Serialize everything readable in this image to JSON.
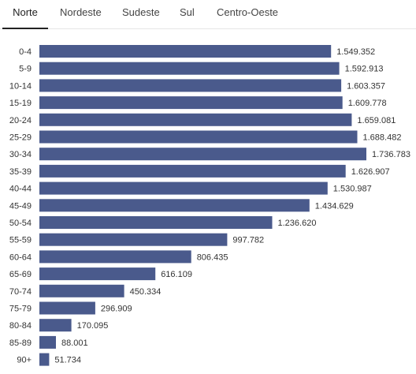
{
  "tabs": [
    {
      "label": "Norte",
      "active": true
    },
    {
      "label": "Nordeste",
      "active": false
    },
    {
      "label": "Sudeste",
      "active": false
    },
    {
      "label": "Sul",
      "active": false
    },
    {
      "label": "Centro-Oeste",
      "active": false
    }
  ],
  "colors": {
    "bar": "#4a5a8c"
  },
  "chart_data": {
    "type": "bar",
    "orientation": "horizontal",
    "categories": [
      "0-4",
      "5-9",
      "10-14",
      "15-19",
      "20-24",
      "25-29",
      "30-34",
      "35-39",
      "40-44",
      "45-49",
      "50-54",
      "55-59",
      "60-64",
      "65-69",
      "70-74",
      "75-79",
      "80-84",
      "85-89",
      "90+"
    ],
    "values": [
      1549352,
      1592913,
      1603357,
      1609778,
      1659081,
      1688482,
      1736783,
      1626907,
      1530987,
      1434629,
      1236620,
      997782,
      806435,
      616109,
      450334,
      296909,
      170095,
      88001,
      51734
    ],
    "value_labels": [
      "1.549.352",
      "1.592.913",
      "1.603.357",
      "1.609.778",
      "1.659.081",
      "1.688.482",
      "1.736.783",
      "1.626.907",
      "1.530.987",
      "1.434.629",
      "1.236.620",
      "997.782",
      "806.435",
      "616.109",
      "450.334",
      "296.909",
      "170.095",
      "88.001",
      "51.734"
    ],
    "title": "",
    "xlabel": "",
    "ylabel": "",
    "grid": false
  }
}
